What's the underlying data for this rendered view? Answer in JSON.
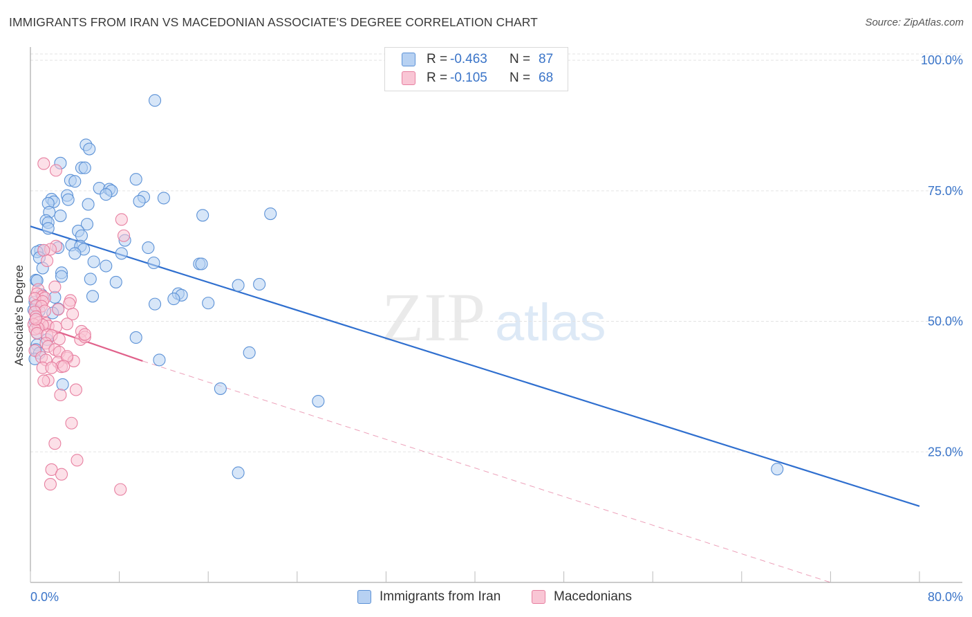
{
  "title": "IMMIGRANTS FROM IRAN VS MACEDONIAN ASSOCIATE'S DEGREE CORRELATION CHART",
  "source": "Source: ZipAtlas.com",
  "watermark": {
    "zip": "ZIP",
    "atlas": "atlas"
  },
  "colors": {
    "blue_fill": "#b7d1f2",
    "blue_stroke": "#5b91d6",
    "blue_line": "#2f6fcf",
    "pink_fill": "#f9c6d5",
    "pink_stroke": "#e77fa0",
    "pink_line": "#e0608a",
    "tick_label": "#3a74c8",
    "grid": "#e3e3e3"
  },
  "legend_top": {
    "rows": [
      {
        "r_label": "R =",
        "r_value": "-0.463",
        "n_label": "N =",
        "n_value": "87",
        "series": "blue"
      },
      {
        "r_label": "R =",
        "r_value": "-0.105",
        "n_label": "N =",
        "n_value": "68",
        "series": "pink"
      }
    ]
  },
  "legend_bottom": {
    "items": [
      "Immigrants from Iran",
      "Macedonians"
    ]
  },
  "chart_data": {
    "type": "scatter",
    "title": "IMMIGRANTS FROM IRAN VS MACEDONIAN ASSOCIATE'S DEGREE CORRELATION CHART",
    "xlabel": "",
    "ylabel": "Associate's Degree",
    "xlim": [
      0,
      80
    ],
    "ylim": [
      0,
      102
    ],
    "x_tick_labels": [
      {
        "value": 0,
        "label": "0.0%"
      },
      {
        "value": 80,
        "label": "80.0%"
      }
    ],
    "x_minor_ticks": [
      0,
      8,
      16,
      24,
      32,
      40,
      48,
      56,
      64,
      72,
      80
    ],
    "y_ticks": [
      {
        "value": 100,
        "label": "100.0%"
      },
      {
        "value": 75,
        "label": "75.0%"
      },
      {
        "value": 50,
        "label": "50.0%"
      },
      {
        "value": 25,
        "label": "25.0%"
      }
    ],
    "grid": true,
    "series": [
      {
        "name": "Immigrants from Iran",
        "color": "blue",
        "trend": {
          "x": [
            0,
            80
          ],
          "y": [
            68.2,
            14.6
          ],
          "dashed_to": null
        },
        "points": [
          [
            11.2,
            92.3
          ],
          [
            5.0,
            83.8
          ],
          [
            5.3,
            83.0
          ],
          [
            2.7,
            80.3
          ],
          [
            4.6,
            79.4
          ],
          [
            4.9,
            79.4
          ],
          [
            9.5,
            77.2
          ],
          [
            3.6,
            77.0
          ],
          [
            4.0,
            76.8
          ],
          [
            6.2,
            75.5
          ],
          [
            7.1,
            75.3
          ],
          [
            7.3,
            75.0
          ],
          [
            6.8,
            74.3
          ],
          [
            3.3,
            74.1
          ],
          [
            10.2,
            73.8
          ],
          [
            12.0,
            73.6
          ],
          [
            1.9,
            73.4
          ],
          [
            3.4,
            73.3
          ],
          [
            9.8,
            73.0
          ],
          [
            2.1,
            72.9
          ],
          [
            1.6,
            72.6
          ],
          [
            5.2,
            72.4
          ],
          [
            1.7,
            70.9
          ],
          [
            2.7,
            70.2
          ],
          [
            21.6,
            70.6
          ],
          [
            15.5,
            70.3
          ],
          [
            1.4,
            69.3
          ],
          [
            1.6,
            68.9
          ],
          [
            5.1,
            68.6
          ],
          [
            1.6,
            67.8
          ],
          [
            4.3,
            67.3
          ],
          [
            4.6,
            66.4
          ],
          [
            8.5,
            65.5
          ],
          [
            3.7,
            64.6
          ],
          [
            4.5,
            64.4
          ],
          [
            2.5,
            64.1
          ],
          [
            10.6,
            64.1
          ],
          [
            4.8,
            63.8
          ],
          [
            0.9,
            63.6
          ],
          [
            1.2,
            63.6
          ],
          [
            0.6,
            63.3
          ],
          [
            4.0,
            63.0
          ],
          [
            8.2,
            63.0
          ],
          [
            0.8,
            62.2
          ],
          [
            5.7,
            61.4
          ],
          [
            11.1,
            61.2
          ],
          [
            15.2,
            61.0
          ],
          [
            15.4,
            61.0
          ],
          [
            6.8,
            60.6
          ],
          [
            1.1,
            60.2
          ],
          [
            2.8,
            59.3
          ],
          [
            2.8,
            58.6
          ],
          [
            5.4,
            58.1
          ],
          [
            0.5,
            57.9
          ],
          [
            0.6,
            57.8
          ],
          [
            7.7,
            57.5
          ],
          [
            18.7,
            56.9
          ],
          [
            20.6,
            57.1
          ],
          [
            13.3,
            55.3
          ],
          [
            13.6,
            55.0
          ],
          [
            1.0,
            55.1
          ],
          [
            5.6,
            54.8
          ],
          [
            2.2,
            54.6
          ],
          [
            12.9,
            54.3
          ],
          [
            0.4,
            53.7
          ],
          [
            16.0,
            53.5
          ],
          [
            11.2,
            53.3
          ],
          [
            0.5,
            52.8
          ],
          [
            2.5,
            52.4
          ],
          [
            0.8,
            52.0
          ],
          [
            2.0,
            51.6
          ],
          [
            0.4,
            50.0
          ],
          [
            0.6,
            47.8
          ],
          [
            9.5,
            46.9
          ],
          [
            0.6,
            45.5
          ],
          [
            0.5,
            44.6
          ],
          [
            0.8,
            43.9
          ],
          [
            19.7,
            44.0
          ],
          [
            11.6,
            42.6
          ],
          [
            0.4,
            42.8
          ],
          [
            2.9,
            37.9
          ],
          [
            17.1,
            37.1
          ],
          [
            25.9,
            34.7
          ],
          [
            18.7,
            21.0
          ],
          [
            67.2,
            21.7
          ],
          [
            0.3,
            52.2
          ],
          [
            1.5,
            46.5
          ]
        ]
      },
      {
        "name": "Macedonians",
        "color": "pink",
        "trend": {
          "x": [
            0,
            10.1
          ],
          "y": [
            49.8,
            42.4
          ],
          "dashed_to": [
            72,
            0
          ]
        },
        "points": [
          [
            1.2,
            80.2
          ],
          [
            2.3,
            78.9
          ],
          [
            8.2,
            69.5
          ],
          [
            8.4,
            66.4
          ],
          [
            2.3,
            64.4
          ],
          [
            1.8,
            63.8
          ],
          [
            1.2,
            63.6
          ],
          [
            1.5,
            61.6
          ],
          [
            0.7,
            56.1
          ],
          [
            2.2,
            56.6
          ],
          [
            0.6,
            55.3
          ],
          [
            1.1,
            54.8
          ],
          [
            1.3,
            54.5
          ],
          [
            0.4,
            54.4
          ],
          [
            3.6,
            54.0
          ],
          [
            1.1,
            53.8
          ],
          [
            3.5,
            53.4
          ],
          [
            0.5,
            53.0
          ],
          [
            1.0,
            52.9
          ],
          [
            2.5,
            52.3
          ],
          [
            1.3,
            52.0
          ],
          [
            3.8,
            51.4
          ],
          [
            0.4,
            51.8
          ],
          [
            0.5,
            50.9
          ],
          [
            0.8,
            49.8
          ],
          [
            1.4,
            49.6
          ],
          [
            0.3,
            49.4
          ],
          [
            3.3,
            49.5
          ],
          [
            1.6,
            49.1
          ],
          [
            1.1,
            49.3
          ],
          [
            0.7,
            48.7
          ],
          [
            0.4,
            48.5
          ],
          [
            2.3,
            48.9
          ],
          [
            4.6,
            48.1
          ],
          [
            0.6,
            47.7
          ],
          [
            1.5,
            47.4
          ],
          [
            1.9,
            47.3
          ],
          [
            4.5,
            46.5
          ],
          [
            4.9,
            47.0
          ],
          [
            2.6,
            46.6
          ],
          [
            1.4,
            45.8
          ],
          [
            1.6,
            45.2
          ],
          [
            0.4,
            44.4
          ],
          [
            2.2,
            44.6
          ],
          [
            2.6,
            44.1
          ],
          [
            1.0,
            43.1
          ],
          [
            3.3,
            43.0
          ],
          [
            1.4,
            42.6
          ],
          [
            2.5,
            42.2
          ],
          [
            3.9,
            42.4
          ],
          [
            2.8,
            41.3
          ],
          [
            1.1,
            41.1
          ],
          [
            1.9,
            41.1
          ],
          [
            1.6,
            38.7
          ],
          [
            1.2,
            38.6
          ],
          [
            4.1,
            36.9
          ],
          [
            2.7,
            35.9
          ],
          [
            3.7,
            30.5
          ],
          [
            2.2,
            26.6
          ],
          [
            4.2,
            23.4
          ],
          [
            1.9,
            21.6
          ],
          [
            2.8,
            20.7
          ],
          [
            1.8,
            18.8
          ],
          [
            8.1,
            17.8
          ],
          [
            3.3,
            43.3
          ],
          [
            0.5,
            50.4
          ],
          [
            4.9,
            47.5
          ],
          [
            3.0,
            41.4
          ]
        ]
      }
    ]
  }
}
